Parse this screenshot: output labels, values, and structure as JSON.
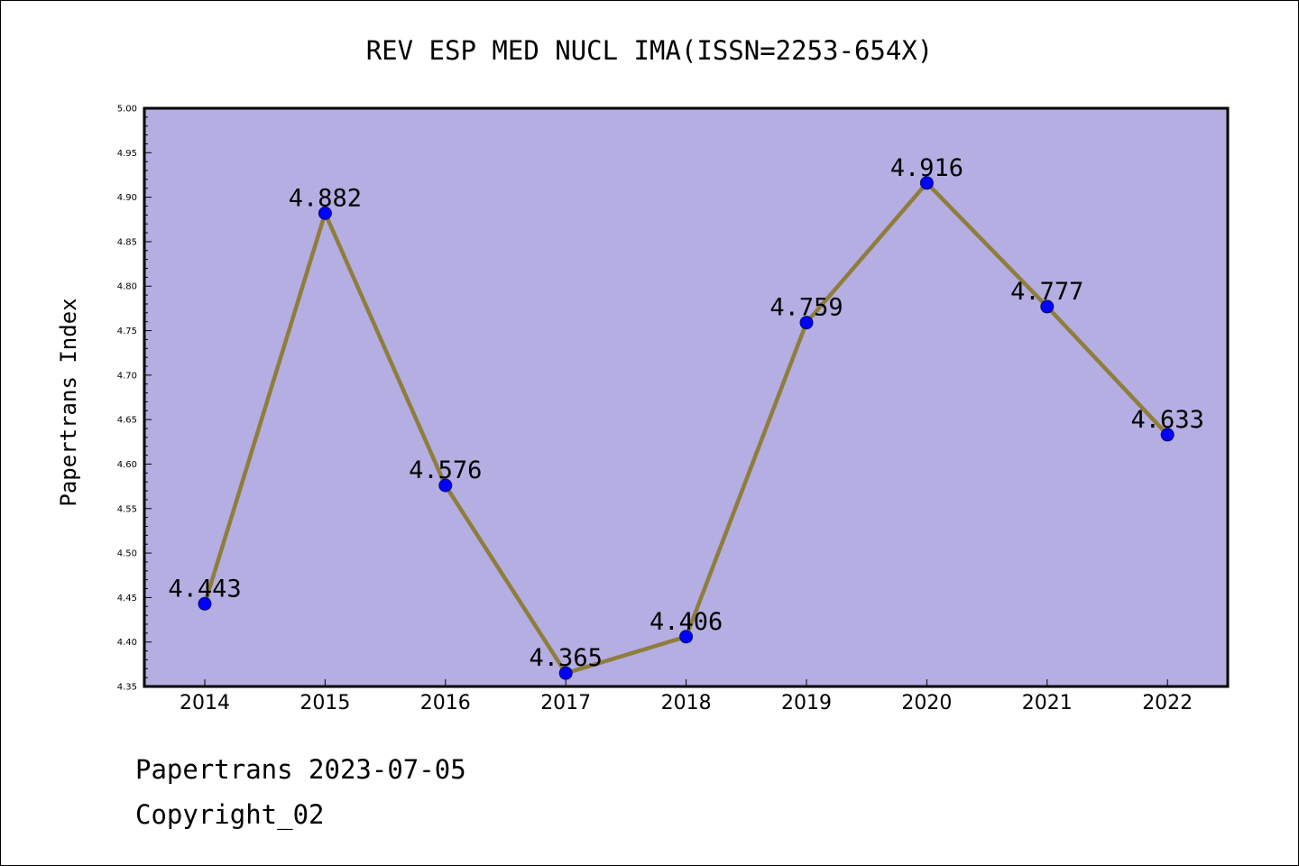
{
  "chart_data": {
    "type": "line",
    "title": "REV ESP MED NUCL IMA(ISSN=2253-654X)",
    "xlabel": "",
    "ylabel": "Papertrans Index",
    "categories": [
      "2014",
      "2015",
      "2016",
      "2017",
      "2018",
      "2019",
      "2020",
      "2021",
      "2022"
    ],
    "values": [
      4.443,
      4.882,
      4.576,
      4.365,
      4.406,
      4.759,
      4.916,
      4.777,
      4.633
    ],
    "value_labels": [
      "4.443",
      "4.882",
      "4.576",
      "4.365",
      "4.406",
      "4.759",
      "4.916",
      "4.777",
      "4.633"
    ],
    "ylim": [
      4.35,
      5.0
    ],
    "yticks": [
      "4.35",
      "4.40",
      "4.45",
      "4.50",
      "4.55",
      "4.60",
      "4.65",
      "4.70",
      "4.75",
      "4.80",
      "4.85",
      "4.90",
      "4.95",
      "5.00"
    ],
    "grid": false,
    "legend": "none",
    "colors": {
      "plot_background": "#b4aee2",
      "line": "#8f7d3c",
      "marker": "#0000ff",
      "marker_edge": "#0d0d6a"
    }
  },
  "footer": {
    "line1": "Papertrans 2023-07-05",
    "line2": "Copyright_02"
  }
}
